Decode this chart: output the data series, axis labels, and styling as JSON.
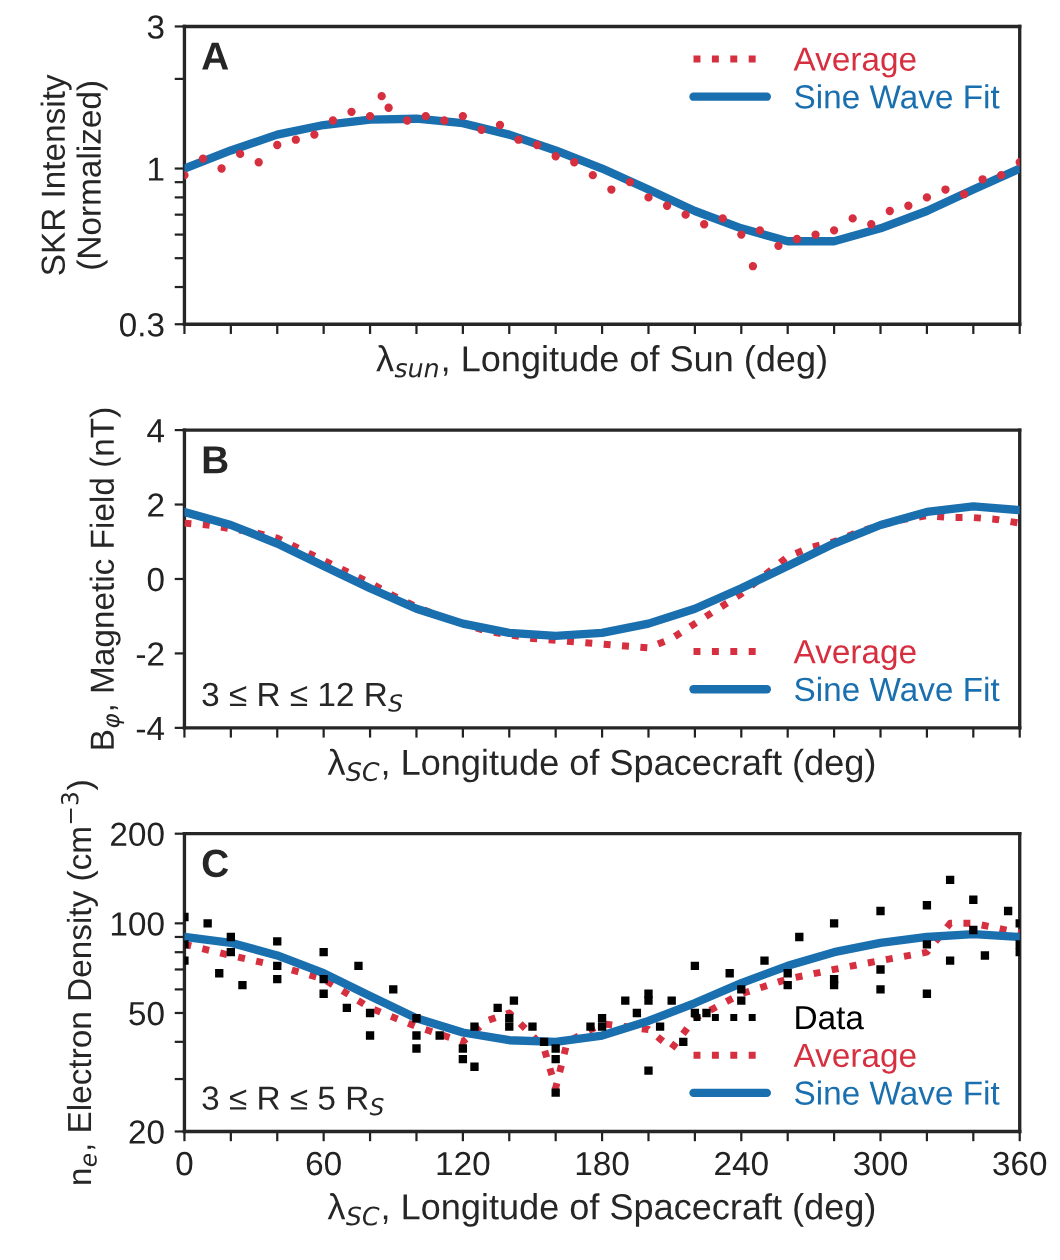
{
  "chart_data": [
    {
      "type": "line",
      "title": "A",
      "xlabel": "λ$_{sun}$, Longitude of Sun (deg)",
      "ylabel": "SKR Intensity\n(Normalized)",
      "log": "y",
      "legend": "top right",
      "tick_labels": "y",
      "xlim": [
        0,
        360
      ],
      "xticks": [
        {
          "value": 0,
          "label": null
        },
        {
          "value": 20,
          "label": null
        },
        {
          "value": 40,
          "label": null
        },
        {
          "value": 60,
          "label": null
        },
        {
          "value": 80,
          "label": null
        },
        {
          "value": 100,
          "label": null
        },
        {
          "value": 120,
          "label": null
        },
        {
          "value": 140,
          "label": null
        },
        {
          "value": 160,
          "label": null
        },
        {
          "value": 180,
          "label": null
        },
        {
          "value": 200,
          "label": null
        },
        {
          "value": 220,
          "label": null
        },
        {
          "value": 240,
          "label": null
        },
        {
          "value": 260,
          "label": null
        },
        {
          "value": 280,
          "label": null
        },
        {
          "value": 300,
          "label": null
        },
        {
          "value": 320,
          "label": null
        },
        {
          "value": 340,
          "label": null
        },
        {
          "value": 360,
          "label": null
        }
      ],
      "ylim": [
        0.3,
        3
      ],
      "yticks": [
        0.3,
        {
          "value": 0.4,
          "label": null
        },
        {
          "value": 0.5,
          "label": null
        },
        {
          "value": 0.6,
          "label": null
        },
        {
          "value": 0.7,
          "label": null
        },
        {
          "value": 0.8,
          "label": null
        },
        {
          "value": 0.9,
          "label": null
        },
        1,
        {
          "value": 2,
          "label": null
        },
        3
      ],
      "series": [
        {
          "name": "Average",
          "type": "scatter",
          "marker": "circle",
          "color": "#d62f3f",
          "x": [
            0,
            8,
            16,
            24,
            32,
            40,
            48,
            56,
            64,
            72,
            80,
            85,
            88,
            96,
            104,
            112,
            120,
            128,
            136,
            144,
            152,
            160,
            168,
            176,
            184,
            192,
            200,
            208,
            216,
            224,
            232,
            240,
            245,
            248,
            256,
            264,
            272,
            280,
            288,
            296,
            304,
            312,
            320,
            328,
            336,
            344,
            352,
            360
          ],
          "values": [
            0.95,
            1.08,
            1.0,
            1.12,
            1.05,
            1.2,
            1.25,
            1.3,
            1.45,
            1.55,
            1.5,
            1.75,
            1.6,
            1.45,
            1.5,
            1.45,
            1.5,
            1.35,
            1.4,
            1.25,
            1.2,
            1.1,
            1.05,
            0.95,
            0.85,
            0.9,
            0.8,
            0.75,
            0.7,
            0.65,
            0.68,
            0.6,
            0.47,
            0.62,
            0.55,
            0.58,
            0.6,
            0.62,
            0.68,
            0.65,
            0.72,
            0.75,
            0.8,
            0.85,
            0.82,
            0.92,
            0.95,
            1.05
          ]
        },
        {
          "name": "Sine Wave Fit",
          "line_style": "solid",
          "color": "#1a6faf",
          "x": [
            0,
            20,
            40,
            60,
            80,
            100,
            120,
            140,
            160,
            180,
            200,
            220,
            240,
            260,
            280,
            300,
            320,
            340,
            360
          ],
          "values": [
            1.0,
            1.15,
            1.3,
            1.4,
            1.46,
            1.47,
            1.42,
            1.3,
            1.15,
            1.0,
            0.85,
            0.72,
            0.63,
            0.57,
            0.57,
            0.63,
            0.72,
            0.85,
            1.0
          ]
        }
      ]
    },
    {
      "type": "line",
      "title": "B",
      "xlabel": "λ$_{SC}$, Longitude of Spacecraft (deg)",
      "ylabel": "B$_{φ}$, Magnetic Field (nT)",
      "legend": "bottom right",
      "tick_labels": "y",
      "annotations": [
        "3 ≤ R ≤ 12 R$_{S}$"
      ],
      "xlim": [
        0,
        360
      ],
      "xticks": [
        {
          "value": 0,
          "label": null
        },
        {
          "value": 20,
          "label": null
        },
        {
          "value": 40,
          "label": null
        },
        {
          "value": 60,
          "label": null
        },
        {
          "value": 80,
          "label": null
        },
        {
          "value": 100,
          "label": null
        },
        {
          "value": 120,
          "label": null
        },
        {
          "value": 140,
          "label": null
        },
        {
          "value": 160,
          "label": null
        },
        {
          "value": 180,
          "label": null
        },
        {
          "value": 200,
          "label": null
        },
        {
          "value": 220,
          "label": null
        },
        {
          "value": 240,
          "label": null
        },
        {
          "value": 260,
          "label": null
        },
        {
          "value": 280,
          "label": null
        },
        {
          "value": 300,
          "label": null
        },
        {
          "value": 320,
          "label": null
        },
        {
          "value": 340,
          "label": null
        },
        {
          "value": 360,
          "label": null
        }
      ],
      "ylim": [
        -4,
        4
      ],
      "yticks": [
        {
          "value": -4,
          "label": "-4"
        },
        {
          "value": -2,
          "label": "-2"
        },
        0,
        2,
        4
      ],
      "series": [
        {
          "name": "Average",
          "line_style": "dotted",
          "color": "#d62f3f",
          "x": [
            0,
            10,
            20,
            30,
            40,
            50,
            60,
            70,
            80,
            90,
            100,
            110,
            120,
            130,
            140,
            150,
            160,
            170,
            180,
            190,
            200,
            210,
            220,
            230,
            240,
            250,
            260,
            270,
            280,
            290,
            300,
            310,
            320,
            330,
            340,
            350,
            360
          ],
          "values": [
            1.5,
            1.45,
            1.35,
            1.25,
            1.1,
            0.8,
            0.5,
            0.2,
            -0.1,
            -0.45,
            -0.75,
            -1.0,
            -1.2,
            -1.4,
            -1.5,
            -1.6,
            -1.65,
            -1.7,
            -1.75,
            -1.8,
            -1.85,
            -1.6,
            -1.2,
            -0.8,
            -0.4,
            0.1,
            0.6,
            0.85,
            1.0,
            1.25,
            1.45,
            1.6,
            1.7,
            1.65,
            1.65,
            1.6,
            1.5
          ]
        },
        {
          "name": "Sine Wave Fit",
          "line_style": "solid",
          "color": "#1a6faf",
          "x": [
            0,
            20,
            40,
            60,
            80,
            100,
            120,
            140,
            160,
            180,
            200,
            220,
            240,
            260,
            280,
            300,
            320,
            340,
            360
          ],
          "values": [
            1.8,
            1.45,
            0.95,
            0.35,
            -0.25,
            -0.8,
            -1.2,
            -1.45,
            -1.53,
            -1.45,
            -1.2,
            -0.8,
            -0.25,
            0.35,
            0.95,
            1.45,
            1.8,
            1.95,
            1.85
          ]
        }
      ]
    },
    {
      "type": "line",
      "title": "C",
      "xlabel": "λ$_{SC}$, Longitude of Spacecraft (deg)",
      "ylabel": "n$_{e}$, Electron Density (cm$^{−3}$)",
      "log": "y",
      "legend": "bottom right",
      "annotations": [
        "3 ≤ R ≤ 5 R$_{S}$"
      ],
      "xlim": [
        0,
        360
      ],
      "xticks": [
        0,
        {
          "value": 20,
          "label": null
        },
        {
          "value": 40,
          "label": null
        },
        60,
        {
          "value": 80,
          "label": null
        },
        {
          "value": 100,
          "label": null
        },
        120,
        {
          "value": 140,
          "label": null
        },
        {
          "value": 160,
          "label": null
        },
        180,
        {
          "value": 200,
          "label": null
        },
        {
          "value": 220,
          "label": null
        },
        240,
        {
          "value": 260,
          "label": null
        },
        {
          "value": 280,
          "label": null
        },
        300,
        {
          "value": 320,
          "label": null
        },
        {
          "value": 340,
          "label": null
        },
        360
      ],
      "ylim": [
        20,
        200
      ],
      "yticks": [
        20,
        {
          "value": 30,
          "label": null
        },
        {
          "value": 40,
          "label": null
        },
        50,
        {
          "value": 60,
          "label": null
        },
        {
          "value": 70,
          "label": null
        },
        {
          "value": 80,
          "label": null
        },
        {
          "value": 90,
          "label": null
        },
        100,
        200
      ],
      "series": [
        {
          "name": "Data",
          "type": "scatter",
          "marker": "square",
          "color": "#000000",
          "x": [
            0,
            10,
            20,
            40,
            60,
            75,
            90,
            100,
            110,
            125,
            135,
            142,
            150,
            160,
            175,
            190,
            200,
            210,
            220,
            235,
            250,
            265,
            280,
            300,
            320,
            330,
            340,
            355,
            360,
            0,
            15,
            25,
            40,
            60,
            70,
            80,
            100,
            120,
            125,
            140,
            155,
            160,
            180,
            195,
            200,
            205,
            215,
            225,
            240,
            260,
            280,
            300,
            320,
            330,
            345,
            360,
            0,
            20,
            40,
            60,
            80,
            100,
            120,
            140,
            160,
            180,
            200,
            220,
            240,
            260,
            280,
            300,
            320,
            340,
            360
          ],
          "values": [
            105,
            100,
            90,
            87,
            80,
            72,
            60,
            48,
            42,
            45,
            52,
            55,
            45,
            38,
            45,
            55,
            58,
            55,
            72,
            68,
            75,
            90,
            100,
            110,
            115,
            140,
            120,
            110,
            100,
            75,
            68,
            62,
            65,
            58,
            52,
            42,
            38,
            35,
            33,
            45,
            40,
            27,
            45,
            50,
            32,
            45,
            40,
            50,
            60,
            68,
            65,
            60,
            58,
            75,
            78,
            80,
            85,
            80,
            72,
            65,
            50,
            42,
            38,
            48,
            35,
            48,
            55,
            50,
            55,
            62,
            62,
            70,
            85,
            95,
            85
          ]
        },
        {
          "name": "Average",
          "line_style": "dotted",
          "color": "#d62f3f",
          "x": [
            0,
            20,
            40,
            60,
            80,
            100,
            120,
            130,
            140,
            150,
            155,
            160,
            165,
            180,
            200,
            210,
            220,
            240,
            260,
            280,
            300,
            320,
            330,
            340,
            360
          ],
          "values": [
            85,
            78,
            72,
            65,
            52,
            45,
            40,
            47,
            50,
            42,
            38,
            28,
            40,
            46,
            44,
            38,
            48,
            58,
            65,
            70,
            75,
            80,
            100,
            100,
            93
          ]
        },
        {
          "name": "Sine Wave Fit",
          "line_style": "solid",
          "color": "#1a6faf",
          "x": [
            0,
            20,
            40,
            60,
            80,
            100,
            120,
            140,
            160,
            180,
            200,
            220,
            240,
            260,
            280,
            300,
            320,
            340,
            360
          ],
          "values": [
            90,
            86,
            78,
            68,
            57,
            48,
            43,
            40.5,
            40,
            42,
            47,
            54,
            63,
            72,
            80,
            86,
            90,
            92,
            90
          ]
        }
      ]
    }
  ]
}
